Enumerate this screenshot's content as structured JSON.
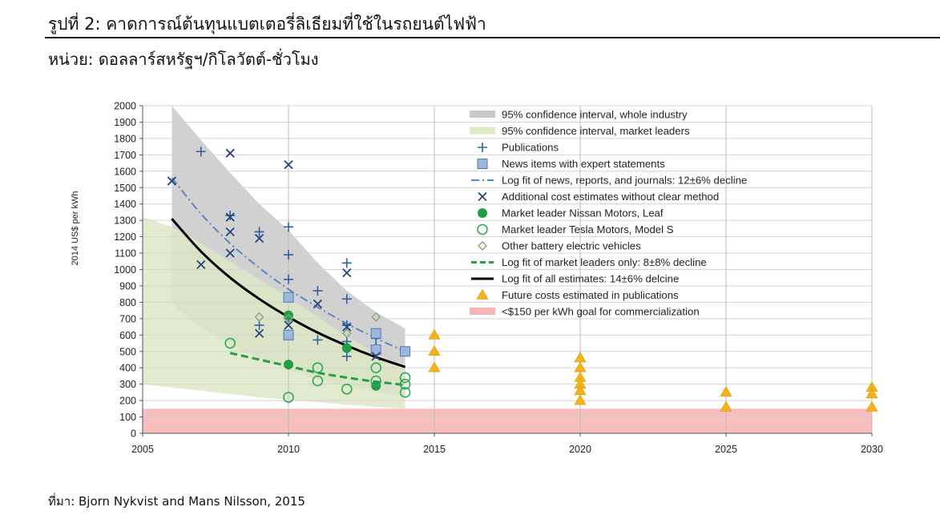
{
  "header": {
    "title": "รูปที่ 2: คาดการณ์ต้นทุนแบตเตอรี่ลิเธียมที่ใช้ในรถยนต์ไฟฟ้า",
    "subtitle": "หน่วย: ดอลลาร์สหรัฐฯ/กิโลวัตต์-ชั่วโมง"
  },
  "footer": {
    "source": "ที่มา: Bjorn Nykvist and Mans Nilsson, 2015"
  },
  "colors": {
    "whole_band": "#c9c9c9",
    "leaders_band": "#dde8c4",
    "goal_band": "#f7b6b6",
    "publications": "#2f5f9f",
    "news": "#9db7dc",
    "news_edge": "#4f79b5",
    "log_fit_news": "#5a86c4",
    "additional": "#28457a",
    "nissan": "#1f9e47",
    "tesla": "#2eaa55",
    "other_bev": "#8aa37a",
    "leaders_fit": "#22a046",
    "all_fit": "#000000",
    "future": "#f5b21b"
  },
  "chart_data": {
    "type": "scatter",
    "xlabel": "",
    "ylabel": "2014 US$ per kWh",
    "xlim": [
      2005,
      2030
    ],
    "ylim": [
      0,
      2000
    ],
    "xticks": [
      2005,
      2010,
      2015,
      2020,
      2025,
      2030
    ],
    "yticks": [
      0,
      100,
      200,
      300,
      400,
      500,
      600,
      700,
      800,
      900,
      1000,
      1100,
      1200,
      1300,
      1400,
      1500,
      1600,
      1700,
      1800,
      1900,
      2000
    ],
    "grid": true,
    "legend_position": "top-right",
    "legend": [
      {
        "key": "band_whole",
        "label": "95% confidence interval, whole industry"
      },
      {
        "key": "band_leaders",
        "label": "95% confidence interval, market leaders"
      },
      {
        "key": "publications",
        "label": "Publications"
      },
      {
        "key": "news",
        "label": "News items with expert statements"
      },
      {
        "key": "fit_news",
        "label": "Log fit of news, reports, and journals: 12±6% decline"
      },
      {
        "key": "additional",
        "label": "Additional cost estimates without clear method"
      },
      {
        "key": "nissan",
        "label": "Market leader Nissan Motors, Leaf"
      },
      {
        "key": "tesla",
        "label": "Market leader Tesla Motors, Model S"
      },
      {
        "key": "other_bev",
        "label": "Other battery electric vehicles"
      },
      {
        "key": "fit_leaders",
        "label": "Log fit of market leaders only: 8±8% decline"
      },
      {
        "key": "fit_all",
        "label": "Log fit of all estimates: 14±6% delcine"
      },
      {
        "key": "future",
        "label": "Future costs estimated in publications"
      },
      {
        "key": "goal",
        "label": "<$150 per kWh goal for commercialization"
      }
    ],
    "bands": {
      "whole_industry": {
        "upper": [
          [
            2006,
            2000
          ],
          [
            2007,
            1790
          ],
          [
            2008,
            1590
          ],
          [
            2009,
            1400
          ],
          [
            2010,
            1240
          ],
          [
            2011,
            1040
          ],
          [
            2012,
            870
          ],
          [
            2013,
            740
          ],
          [
            2014,
            640
          ]
        ],
        "lower": [
          [
            2006,
            790
          ],
          [
            2007,
            640
          ],
          [
            2008,
            540
          ],
          [
            2009,
            455
          ],
          [
            2010,
            385
          ],
          [
            2011,
            330
          ],
          [
            2012,
            285
          ],
          [
            2013,
            250
          ],
          [
            2014,
            225
          ]
        ]
      },
      "market_leaders": {
        "upper": [
          [
            2005,
            1320
          ],
          [
            2006,
            1260
          ],
          [
            2007,
            1160
          ],
          [
            2008,
            1050
          ],
          [
            2009,
            940
          ],
          [
            2010,
            830
          ],
          [
            2011,
            710
          ],
          [
            2012,
            590
          ],
          [
            2013,
            490
          ],
          [
            2014,
            400
          ]
        ],
        "lower": [
          [
            2005,
            300
          ],
          [
            2006,
            280
          ],
          [
            2007,
            260
          ],
          [
            2008,
            240
          ],
          [
            2009,
            220
          ],
          [
            2010,
            205
          ],
          [
            2011,
            190
          ],
          [
            2012,
            175
          ],
          [
            2013,
            162
          ],
          [
            2014,
            150
          ]
        ]
      },
      "goal_range": [
        0,
        150
      ],
      "goal_xrange": [
        2005,
        2030
      ]
    },
    "series": [
      {
        "key": "publications",
        "points": [
          [
            2007,
            1720
          ],
          [
            2008,
            1330
          ],
          [
            2009,
            1230
          ],
          [
            2009,
            660
          ],
          [
            2010,
            1260
          ],
          [
            2010,
            1090
          ],
          [
            2010,
            940
          ],
          [
            2010,
            830
          ],
          [
            2010,
            700
          ],
          [
            2011,
            870
          ],
          [
            2011,
            570
          ],
          [
            2012,
            1040
          ],
          [
            2012,
            820
          ],
          [
            2012,
            660
          ],
          [
            2012,
            560
          ],
          [
            2012,
            470
          ],
          [
            2013,
            580
          ],
          [
            2013,
            530
          ]
        ]
      },
      {
        "key": "news",
        "points": [
          [
            2010,
            830
          ],
          [
            2010,
            600
          ],
          [
            2013,
            610
          ],
          [
            2013,
            510
          ],
          [
            2014,
            500
          ]
        ]
      },
      {
        "key": "additional",
        "points": [
          [
            2006,
            1540
          ],
          [
            2007,
            1030
          ],
          [
            2008,
            1710
          ],
          [
            2008,
            1320
          ],
          [
            2008,
            1230
          ],
          [
            2008,
            1100
          ],
          [
            2009,
            1190
          ],
          [
            2009,
            610
          ],
          [
            2010,
            1640
          ],
          [
            2010,
            660
          ],
          [
            2011,
            790
          ],
          [
            2012,
            980
          ],
          [
            2012,
            650
          ],
          [
            2013,
            470
          ]
        ]
      },
      {
        "key": "nissan",
        "points": [
          [
            2010,
            720
          ],
          [
            2010,
            420
          ],
          [
            2012,
            520
          ],
          [
            2013,
            290
          ]
        ]
      },
      {
        "key": "tesla",
        "points": [
          [
            2008,
            550
          ],
          [
            2010,
            220
          ],
          [
            2011,
            400
          ],
          [
            2011,
            320
          ],
          [
            2012,
            270
          ],
          [
            2013,
            400
          ],
          [
            2013,
            320
          ],
          [
            2014,
            340
          ],
          [
            2014,
            300
          ],
          [
            2014,
            250
          ]
        ]
      },
      {
        "key": "other_bev",
        "points": [
          [
            2009,
            710
          ],
          [
            2010,
            700
          ],
          [
            2012,
            610
          ],
          [
            2013,
            710
          ]
        ]
      },
      {
        "key": "future",
        "points": [
          [
            2015,
            600
          ],
          [
            2015,
            500
          ],
          [
            2015,
            400
          ],
          [
            2020,
            460
          ],
          [
            2020,
            400
          ],
          [
            2020,
            340
          ],
          [
            2020,
            300
          ],
          [
            2020,
            260
          ],
          [
            2020,
            200
          ],
          [
            2025,
            250
          ],
          [
            2025,
            160
          ],
          [
            2030,
            280
          ],
          [
            2030,
            240
          ],
          [
            2030,
            160
          ]
        ]
      }
    ],
    "fits": [
      {
        "key": "fit_news",
        "points": [
          [
            2006,
            1560
          ],
          [
            2007,
            1340
          ],
          [
            2008,
            1160
          ],
          [
            2009,
            1010
          ],
          [
            2010,
            880
          ],
          [
            2011,
            770
          ],
          [
            2012,
            670
          ],
          [
            2013,
            580
          ],
          [
            2014,
            500
          ]
        ]
      },
      {
        "key": "fit_all",
        "points": [
          [
            2006,
            1310
          ],
          [
            2007,
            1110
          ],
          [
            2008,
            950
          ],
          [
            2009,
            820
          ],
          [
            2010,
            710
          ],
          [
            2011,
            615
          ],
          [
            2012,
            535
          ],
          [
            2013,
            465
          ],
          [
            2014,
            405
          ]
        ]
      },
      {
        "key": "fit_leaders",
        "points": [
          [
            2008,
            490
          ],
          [
            2009,
            450
          ],
          [
            2010,
            410
          ],
          [
            2011,
            370
          ],
          [
            2012,
            340
          ],
          [
            2013,
            315
          ],
          [
            2014,
            295
          ]
        ]
      }
    ]
  }
}
